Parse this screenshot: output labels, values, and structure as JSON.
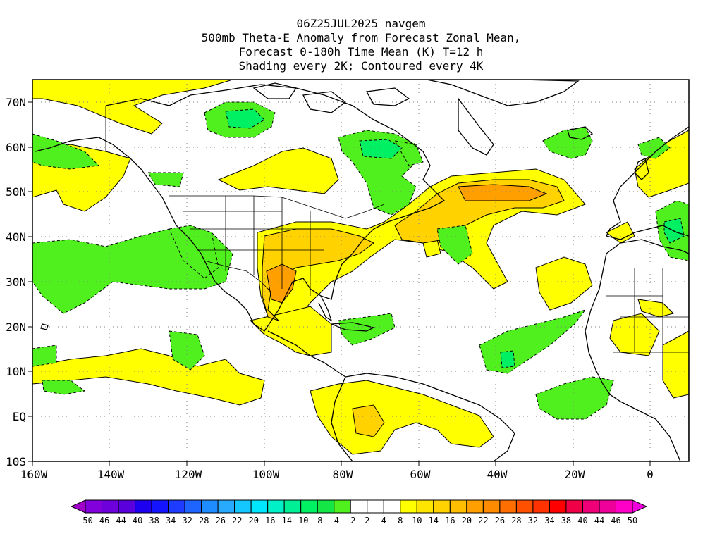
{
  "title": {
    "line1": "06Z25JUL2025 navgem",
    "line2": "500mb Theta-E Anomaly from Forecast Zonal Mean,",
    "line3": "Forecast 0-180h Time Mean (K) T=12 h",
    "line4": "Shading every 2K; Contoured every 4K"
  },
  "axes": {
    "lat_labels": [
      "70N",
      "60N",
      "50N",
      "40N",
      "30N",
      "20N",
      "10N",
      "EQ",
      "10S"
    ],
    "lon_labels": [
      "160W",
      "140W",
      "120W",
      "100W",
      "80W",
      "60W",
      "40W",
      "20W",
      "0"
    ]
  },
  "colorbar": {
    "labels": [
      "-50",
      "-46",
      "-44",
      "-40",
      "-38",
      "-34",
      "-32",
      "-28",
      "-26",
      "-22",
      "-20",
      "-16",
      "-14",
      "-10",
      "-8",
      "-4",
      "-2",
      "2",
      "4",
      "8",
      "10",
      "14",
      "16",
      "20",
      "22",
      "26",
      "28",
      "32",
      "34",
      "38",
      "40",
      "44",
      "46",
      "50"
    ],
    "colors": [
      "#a000c8",
      "#8200dc",
      "#6e00dc",
      "#5a00dc",
      "#1e00f0",
      "#1414ff",
      "#1e3cff",
      "#1e64ff",
      "#1e8cff",
      "#28aaff",
      "#14c8ff",
      "#00e6ff",
      "#00f0c8",
      "#00f096",
      "#00f064",
      "#14e646",
      "#50f01e",
      "#ffffff",
      "#ffffff",
      "#ffffff",
      "#ffff00",
      "#ffe600",
      "#ffd200",
      "#ffbe00",
      "#ffa000",
      "#ff8c00",
      "#ff6e00",
      "#ff5000",
      "#ff3200",
      "#ff0000",
      "#f00046",
      "#f00078",
      "#f0009b",
      "#ff00c8",
      "#f000dc"
    ]
  },
  "map_colors": {
    "positive_light": "#ffff00",
    "positive_mid": "#ffd200",
    "positive_strong": "#ffa000",
    "negative_light": "#50f01e",
    "negative_mid": "#00f064"
  }
}
